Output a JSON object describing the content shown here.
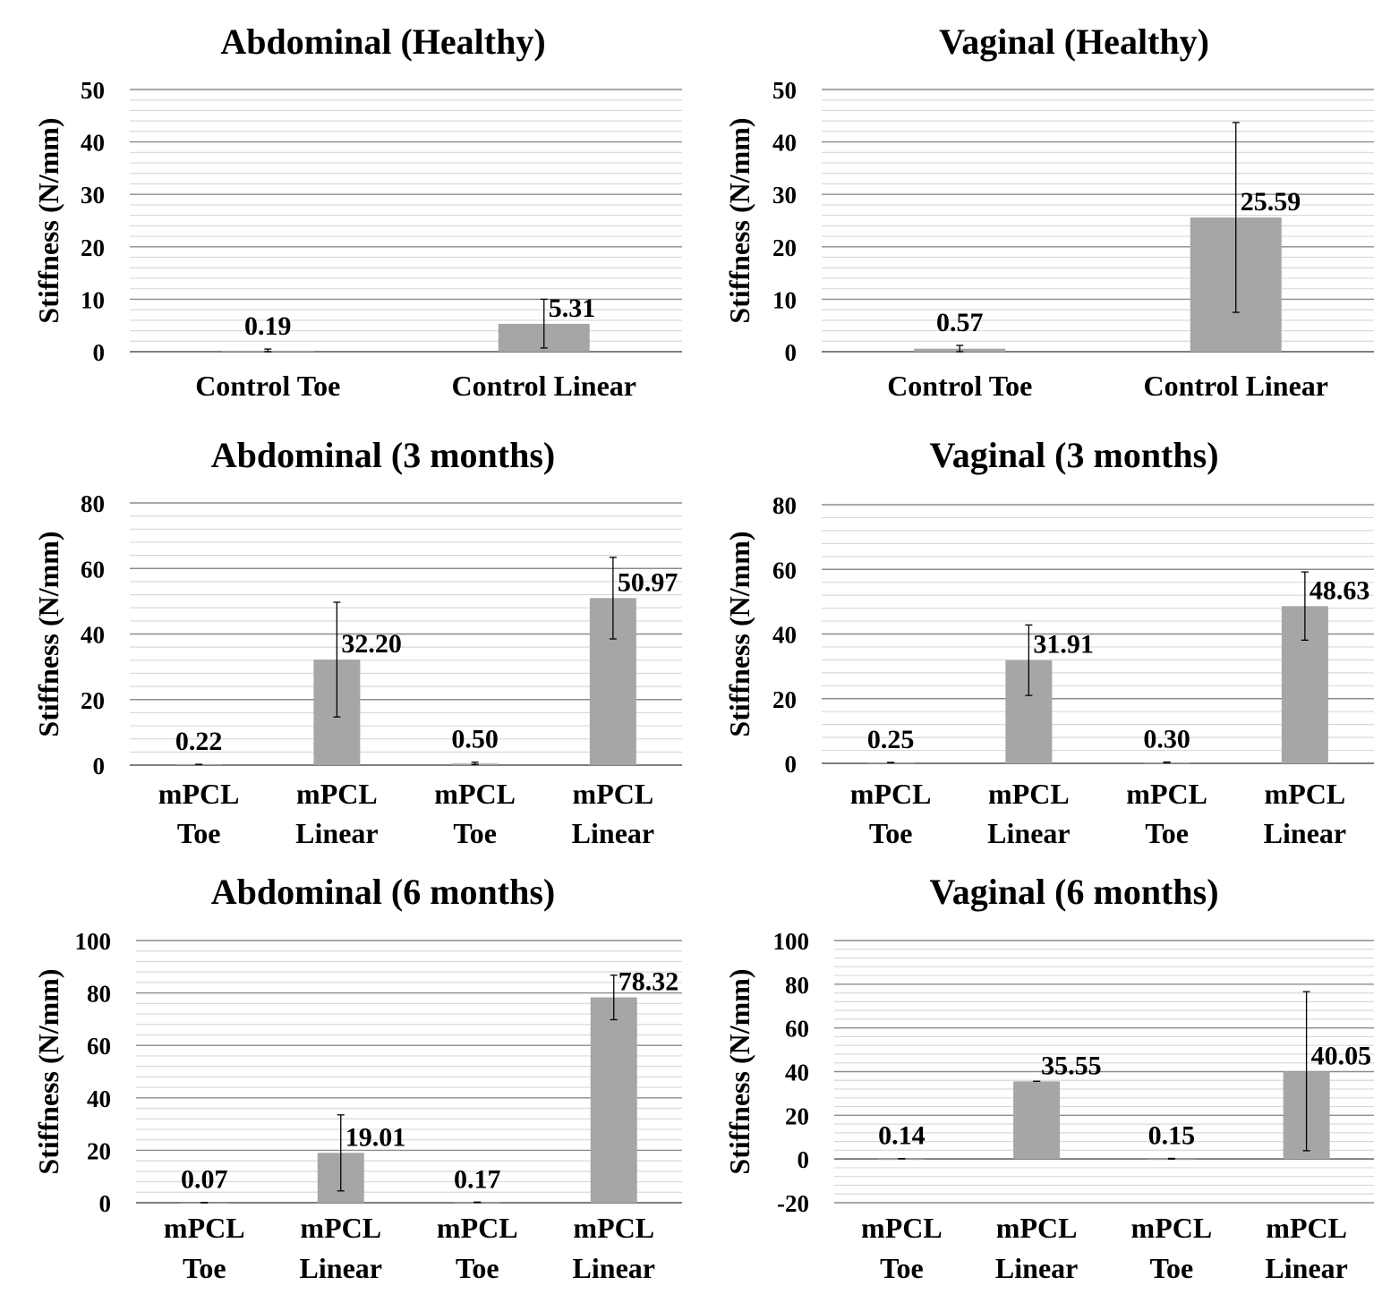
{
  "colors": {
    "bar": "#a6a6a6",
    "major_grid": "#8c8c8c",
    "minor_grid": "#d9d9d9",
    "axis": "#7f7f7f",
    "text": "#000000"
  },
  "chart_data": [
    {
      "type": "bar",
      "title": "Abdominal (Healthy)",
      "ylabel": "Stiffness (N/mm)",
      "ylim": [
        0,
        50
      ],
      "yticks": [
        "0",
        "10",
        "20",
        "30",
        "40",
        "50"
      ],
      "ytick_values": [
        0,
        10,
        20,
        30,
        40,
        50
      ],
      "minor_step": 2,
      "categories": [
        [
          "Control Toe"
        ],
        [
          "Control Linear"
        ]
      ],
      "values": [
        0.19,
        5.31
      ],
      "labels": [
        "0.19",
        "5.31"
      ],
      "errors": [
        [
          0.0,
          0.5
        ],
        [
          0.7,
          10.0
        ]
      ],
      "grid": true,
      "legend": "none"
    },
    {
      "type": "bar",
      "title": "Vaginal (Healthy)",
      "ylabel": "Stiffness (N/mm)",
      "ylim": [
        0,
        50
      ],
      "yticks": [
        "0",
        "10",
        "20",
        "30",
        "40",
        "50"
      ],
      "ytick_values": [
        0,
        10,
        20,
        30,
        40,
        50
      ],
      "minor_step": 2,
      "categories": [
        [
          "Control Toe"
        ],
        [
          "Control Linear"
        ]
      ],
      "values": [
        0.57,
        25.59
      ],
      "labels": [
        "0.57",
        "25.59"
      ],
      "errors": [
        [
          0.0,
          1.2
        ],
        [
          7.5,
          43.7
        ]
      ],
      "grid": true,
      "legend": "none"
    },
    {
      "type": "bar",
      "title": "Abdominal (3 months)",
      "ylabel": "Stiffness (N/mm)",
      "ylim": [
        0,
        80
      ],
      "yticks": [
        "0",
        "20",
        "40",
        "60",
        "80"
      ],
      "ytick_values": [
        0,
        20,
        40,
        60,
        80
      ],
      "minor_step": 4,
      "categories": [
        [
          "mPCL",
          "Toe"
        ],
        [
          "mPCL",
          "Linear"
        ],
        [
          "mPCL",
          "Toe"
        ],
        [
          "mPCL",
          "Linear"
        ]
      ],
      "values": [
        0.22,
        32.2,
        0.5,
        50.97
      ],
      "labels": [
        "0.22",
        "32.20",
        "0.50",
        "50.97"
      ],
      "errors": [
        [
          0.2,
          0.25
        ],
        [
          14.7,
          49.7
        ],
        [
          0.2,
          0.9
        ],
        [
          38.5,
          63.4
        ]
      ],
      "grid": true,
      "legend": "none"
    },
    {
      "type": "bar",
      "title": "Vaginal (3 months)",
      "ylabel": "Stiffness (N/mm)",
      "ylim": [
        0,
        80
      ],
      "yticks": [
        "0",
        "20",
        "40",
        "60",
        "80"
      ],
      "ytick_values": [
        0,
        20,
        40,
        60,
        80
      ],
      "minor_step": 4,
      "categories": [
        [
          "mPCL",
          "Toe"
        ],
        [
          "mPCL",
          "Linear"
        ],
        [
          "mPCL",
          "Toe"
        ],
        [
          "mPCL",
          "Linear"
        ]
      ],
      "values": [
        0.25,
        31.91,
        0.3,
        48.63
      ],
      "labels": [
        "0.25",
        "31.91",
        "0.30",
        "48.63"
      ],
      "errors": [
        [
          0.2,
          0.3
        ],
        [
          21.0,
          42.8
        ],
        [
          0.2,
          0.4
        ],
        [
          38.1,
          59.2
        ]
      ],
      "grid": true,
      "legend": "none"
    },
    {
      "type": "bar",
      "title": "Abdominal (6 months)",
      "ylabel": "Stiffness (N/mm)",
      "ylim": [
        0,
        100
      ],
      "yticks": [
        "0",
        "20",
        "40",
        "60",
        "80",
        "100"
      ],
      "ytick_values": [
        0,
        20,
        40,
        60,
        80,
        100
      ],
      "minor_step": 4,
      "categories": [
        [
          "mPCL",
          "Toe"
        ],
        [
          "mPCL",
          "Linear"
        ],
        [
          "mPCL",
          "Toe"
        ],
        [
          "mPCL",
          "Linear"
        ]
      ],
      "values": [
        0.07,
        19.01,
        0.17,
        78.32
      ],
      "labels": [
        "0.07",
        "19.01",
        "0.17",
        "78.32"
      ],
      "errors": [
        [
          0.0,
          0.1
        ],
        [
          4.5,
          33.5
        ],
        [
          0.1,
          0.25
        ],
        [
          69.8,
          86.8
        ]
      ],
      "grid": true,
      "legend": "none"
    },
    {
      "type": "bar",
      "title": "Vaginal (6 months)",
      "ylabel": "Stiffness (N/mm)",
      "ylim": [
        -20,
        100
      ],
      "yticks": [
        "-20",
        "0",
        "20",
        "40",
        "60",
        "80",
        "100"
      ],
      "ytick_values": [
        -20,
        0,
        20,
        40,
        60,
        80,
        100
      ],
      "minor_step": 4,
      "categories": [
        [
          "mPCL",
          "Toe"
        ],
        [
          "mPCL",
          "Linear"
        ],
        [
          "mPCL",
          "Toe"
        ],
        [
          "mPCL",
          "Linear"
        ]
      ],
      "values": [
        0.14,
        35.55,
        0.15,
        40.05
      ],
      "labels": [
        "0.14",
        "35.55",
        "0.15",
        "40.05"
      ],
      "errors": [
        [
          0.1,
          0.2
        ],
        [
          35.55,
          35.55
        ],
        [
          0.0,
          0.3
        ],
        [
          3.8,
          76.6
        ]
      ],
      "grid": true,
      "legend": "none"
    }
  ]
}
